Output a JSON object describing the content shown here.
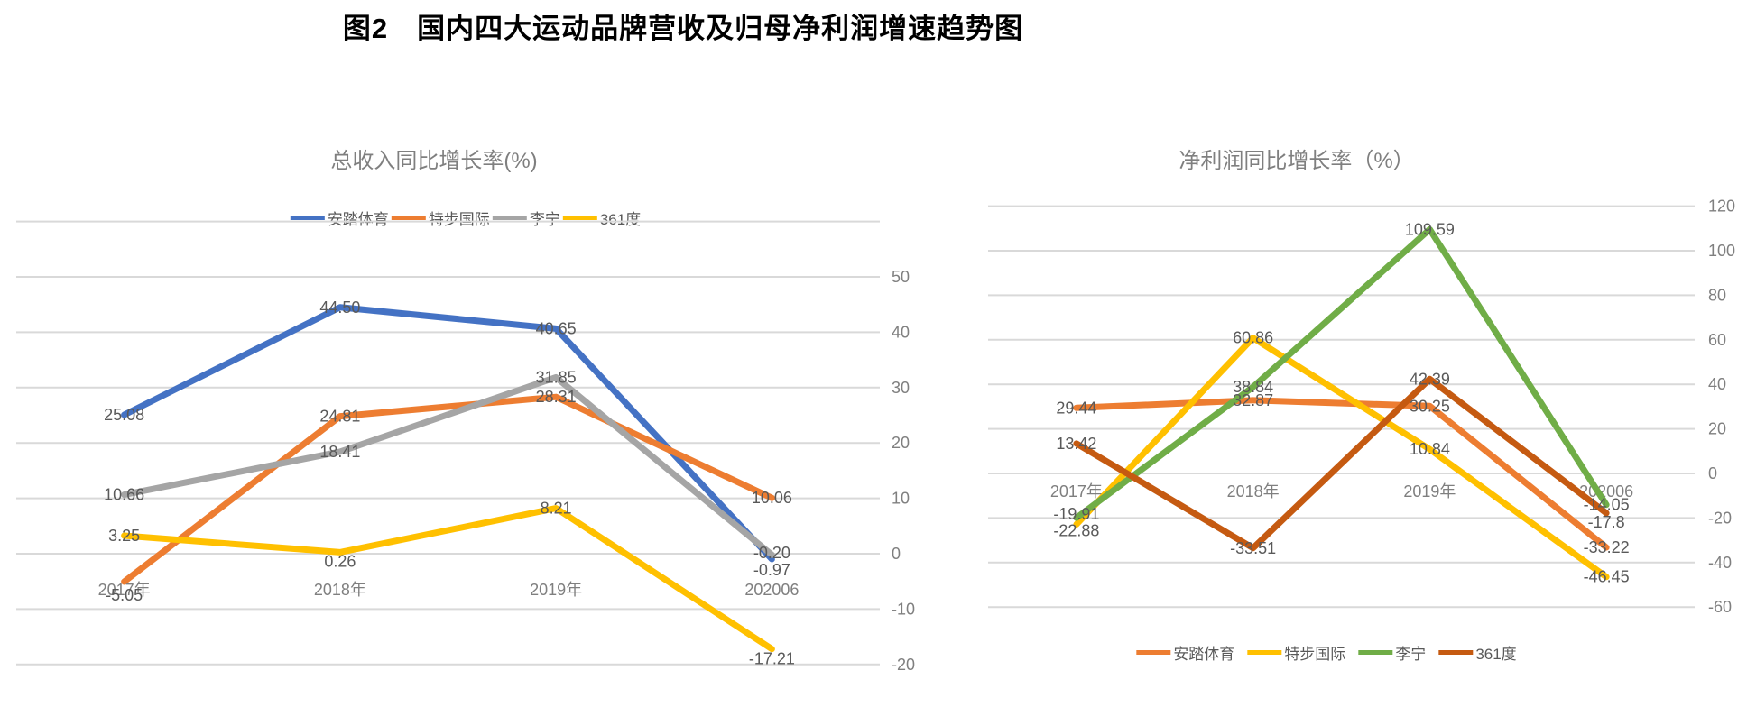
{
  "main_title": "图2　国内四大运动品牌营收及归母净利润增速趋势图",
  "grid_color": "#D9D9D9",
  "text_colors": {
    "axis": "#7f7f7f",
    "data_label": "#595959",
    "title": "#7f7f7f"
  },
  "chart_data": [
    {
      "type": "line",
      "title": "总收入同比增长率(%)",
      "legend_position": "top",
      "categories": [
        "2017年",
        "2018年",
        "2019年",
        "202006"
      ],
      "axis": {
        "max": 60,
        "min": -20,
        "step": 10,
        "tick_labels": [
          50,
          40,
          30,
          20,
          10,
          0,
          -10,
          -20
        ]
      },
      "grid": true,
      "series": [
        {
          "name": "安踏体育",
          "color": "#4472C4",
          "values": [
            25.08,
            44.5,
            40.65,
            -0.97
          ],
          "labels": [
            "25.08",
            "44.50",
            "40.65",
            "-0.97"
          ],
          "label_dy": [
            0,
            0,
            0,
            12
          ]
        },
        {
          "name": "特步国际",
          "color": "#ED7D31",
          "values": [
            -5.05,
            24.81,
            28.31,
            10.06
          ],
          "labels": [
            "-5.05",
            "24.81",
            "28.31",
            "10.06"
          ],
          "label_dy": [
            15,
            0,
            0,
            0
          ]
        },
        {
          "name": "李宁",
          "color": "#A5A5A5",
          "values": [
            10.66,
            18.41,
            31.85,
            -0.2
          ],
          "labels": [
            "10.66",
            "18.41",
            "31.85",
            "-0.20"
          ],
          "label_dy": [
            0,
            0,
            0,
            -2
          ]
        },
        {
          "name": "361度",
          "color": "#FFC000",
          "values": [
            3.25,
            0.26,
            8.21,
            -17.21
          ],
          "labels": [
            "3.25",
            "0.26",
            "8.21",
            "-17.21"
          ],
          "label_dy": [
            0,
            10,
            0,
            11
          ]
        }
      ]
    },
    {
      "type": "line",
      "title": "净利润同比增长率（%）",
      "legend_position": "bottom",
      "categories": [
        "2017年",
        "2018年",
        "2019年",
        "202006"
      ],
      "axis": {
        "max": 120,
        "min": -60,
        "step": 20,
        "tick_labels": [
          120,
          100,
          80,
          60,
          40,
          20,
          0,
          -20,
          -40,
          -60
        ]
      },
      "grid": true,
      "series": [
        {
          "name": "安踏体育",
          "color": "#ED7D31",
          "values": [
            29.44,
            32.87,
            30.25,
            -33.22
          ],
          "labels": [
            "29.44",
            "32.87",
            "30.25",
            "-33.22"
          ],
          "label_dy": [
            0,
            0,
            0,
            0
          ]
        },
        {
          "name": "特步国际",
          "color": "#FFC000",
          "values": [
            -22.88,
            60.86,
            10.84,
            -46.45
          ],
          "labels": [
            "-22.88",
            "60.86",
            "10.84",
            "-46.45"
          ],
          "label_dy": [
            7,
            0,
            0,
            0
          ]
        },
        {
          "name": "李宁",
          "color": "#70AD47",
          "values": [
            -19.91,
            38.84,
            109.59,
            -14.05
          ],
          "labels": [
            "-19.91",
            "38.84",
            "109.59",
            "-14.05"
          ],
          "label_dy": [
            -4,
            0,
            0,
            0
          ]
        },
        {
          "name": "361度",
          "color": "#C55A11",
          "values": [
            13.42,
            -33.51,
            42.39,
            -17.8
          ],
          "labels": [
            "13.42",
            "-33.51",
            "42.39",
            "-17.8"
          ],
          "label_dy": [
            0,
            0,
            0,
            10
          ]
        }
      ]
    }
  ]
}
